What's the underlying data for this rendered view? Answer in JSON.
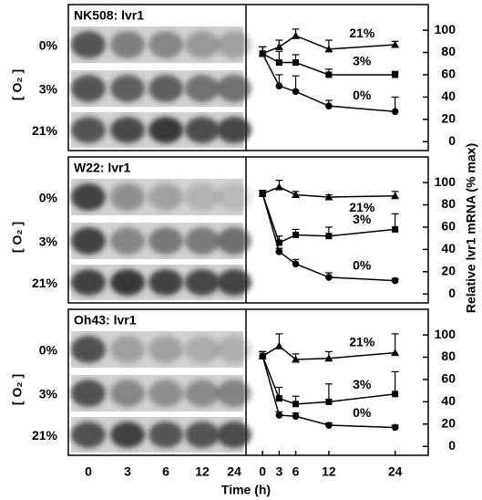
{
  "blot_lanes": [
    "0",
    "3",
    "6",
    "12",
    "24"
  ],
  "blots": [
    {
      "title": "NK508: lvr1",
      "side_label": "[ O₂ ]",
      "rows": [
        "0%",
        "3%",
        "21%"
      ]
    },
    {
      "title": "W22: lvr1",
      "side_label": "[ O₂ ]",
      "rows": [
        "0%",
        "3%",
        "21%"
      ]
    },
    {
      "title": "Oh43: lvr1",
      "side_label": "[ O₂ ]",
      "rows": [
        "0%",
        "3%",
        "21%"
      ]
    }
  ],
  "chart_data": [
    {
      "type": "line",
      "x": [
        0,
        3,
        6,
        12,
        24
      ],
      "xlim": [
        -3,
        30
      ],
      "ylim": [
        -8,
        123
      ],
      "yticks": [
        0,
        20,
        40,
        60,
        80,
        100
      ],
      "series": [
        {
          "name": "21%",
          "marker": "triangle",
          "color": "#000000",
          "values": [
            79,
            85,
            95,
            83,
            87
          ],
          "errors": [
            6,
            6,
            6,
            8,
            3
          ]
        },
        {
          "name": "3%",
          "marker": "square",
          "color": "#000000",
          "values": [
            79,
            71,
            71,
            60,
            60
          ],
          "errors": [
            6,
            10,
            7,
            5,
            3
          ]
        },
        {
          "name": "0%",
          "marker": "circle",
          "color": "#000000",
          "values": [
            79,
            50,
            45,
            32,
            27
          ],
          "errors": [
            6,
            10,
            14,
            5,
            13
          ]
        }
      ]
    },
    {
      "type": "line",
      "x": [
        0,
        3,
        6,
        12,
        24
      ],
      "xlim": [
        -3,
        30
      ],
      "ylim": [
        -8,
        123
      ],
      "yticks": [
        0,
        20,
        40,
        60,
        80,
        100
      ],
      "ylabel": "Relative lvr1 mRNA (% max)",
      "series": [
        {
          "name": "21%",
          "marker": "triangle",
          "color": "#000000",
          "values": [
            90,
            96,
            89,
            87,
            88
          ],
          "errors": [
            3,
            6,
            3,
            2,
            4
          ]
        },
        {
          "name": "3%",
          "marker": "square",
          "color": "#000000",
          "values": [
            90,
            46,
            53,
            52,
            58
          ],
          "errors": [
            3,
            6,
            5,
            8,
            14
          ]
        },
        {
          "name": "0%",
          "marker": "circle",
          "color": "#000000",
          "values": [
            90,
            38,
            27,
            15,
            12
          ],
          "errors": [
            3,
            3,
            4,
            4,
            2
          ]
        }
      ]
    },
    {
      "type": "line",
      "x": [
        0,
        3,
        6,
        12,
        24
      ],
      "xlim": [
        -3,
        30
      ],
      "ylim": [
        -8,
        123
      ],
      "yticks": [
        0,
        20,
        40,
        60,
        80,
        100
      ],
      "xticks": [
        0,
        3,
        6,
        12,
        24
      ],
      "xlabel": "Time (h)",
      "series": [
        {
          "name": "21%",
          "marker": "triangle",
          "color": "#000000",
          "values": [
            81,
            90,
            78,
            79,
            84
          ],
          "errors": [
            4,
            11,
            5,
            6,
            17
          ]
        },
        {
          "name": "3%",
          "marker": "square",
          "color": "#000000",
          "values": [
            81,
            43,
            38,
            40,
            47
          ],
          "errors": [
            4,
            10,
            7,
            16,
            20
          ]
        },
        {
          "name": "0%",
          "marker": "circle",
          "color": "#000000",
          "values": [
            81,
            28,
            27,
            19,
            17
          ],
          "errors": [
            4,
            3,
            3,
            2,
            2
          ]
        }
      ]
    }
  ]
}
